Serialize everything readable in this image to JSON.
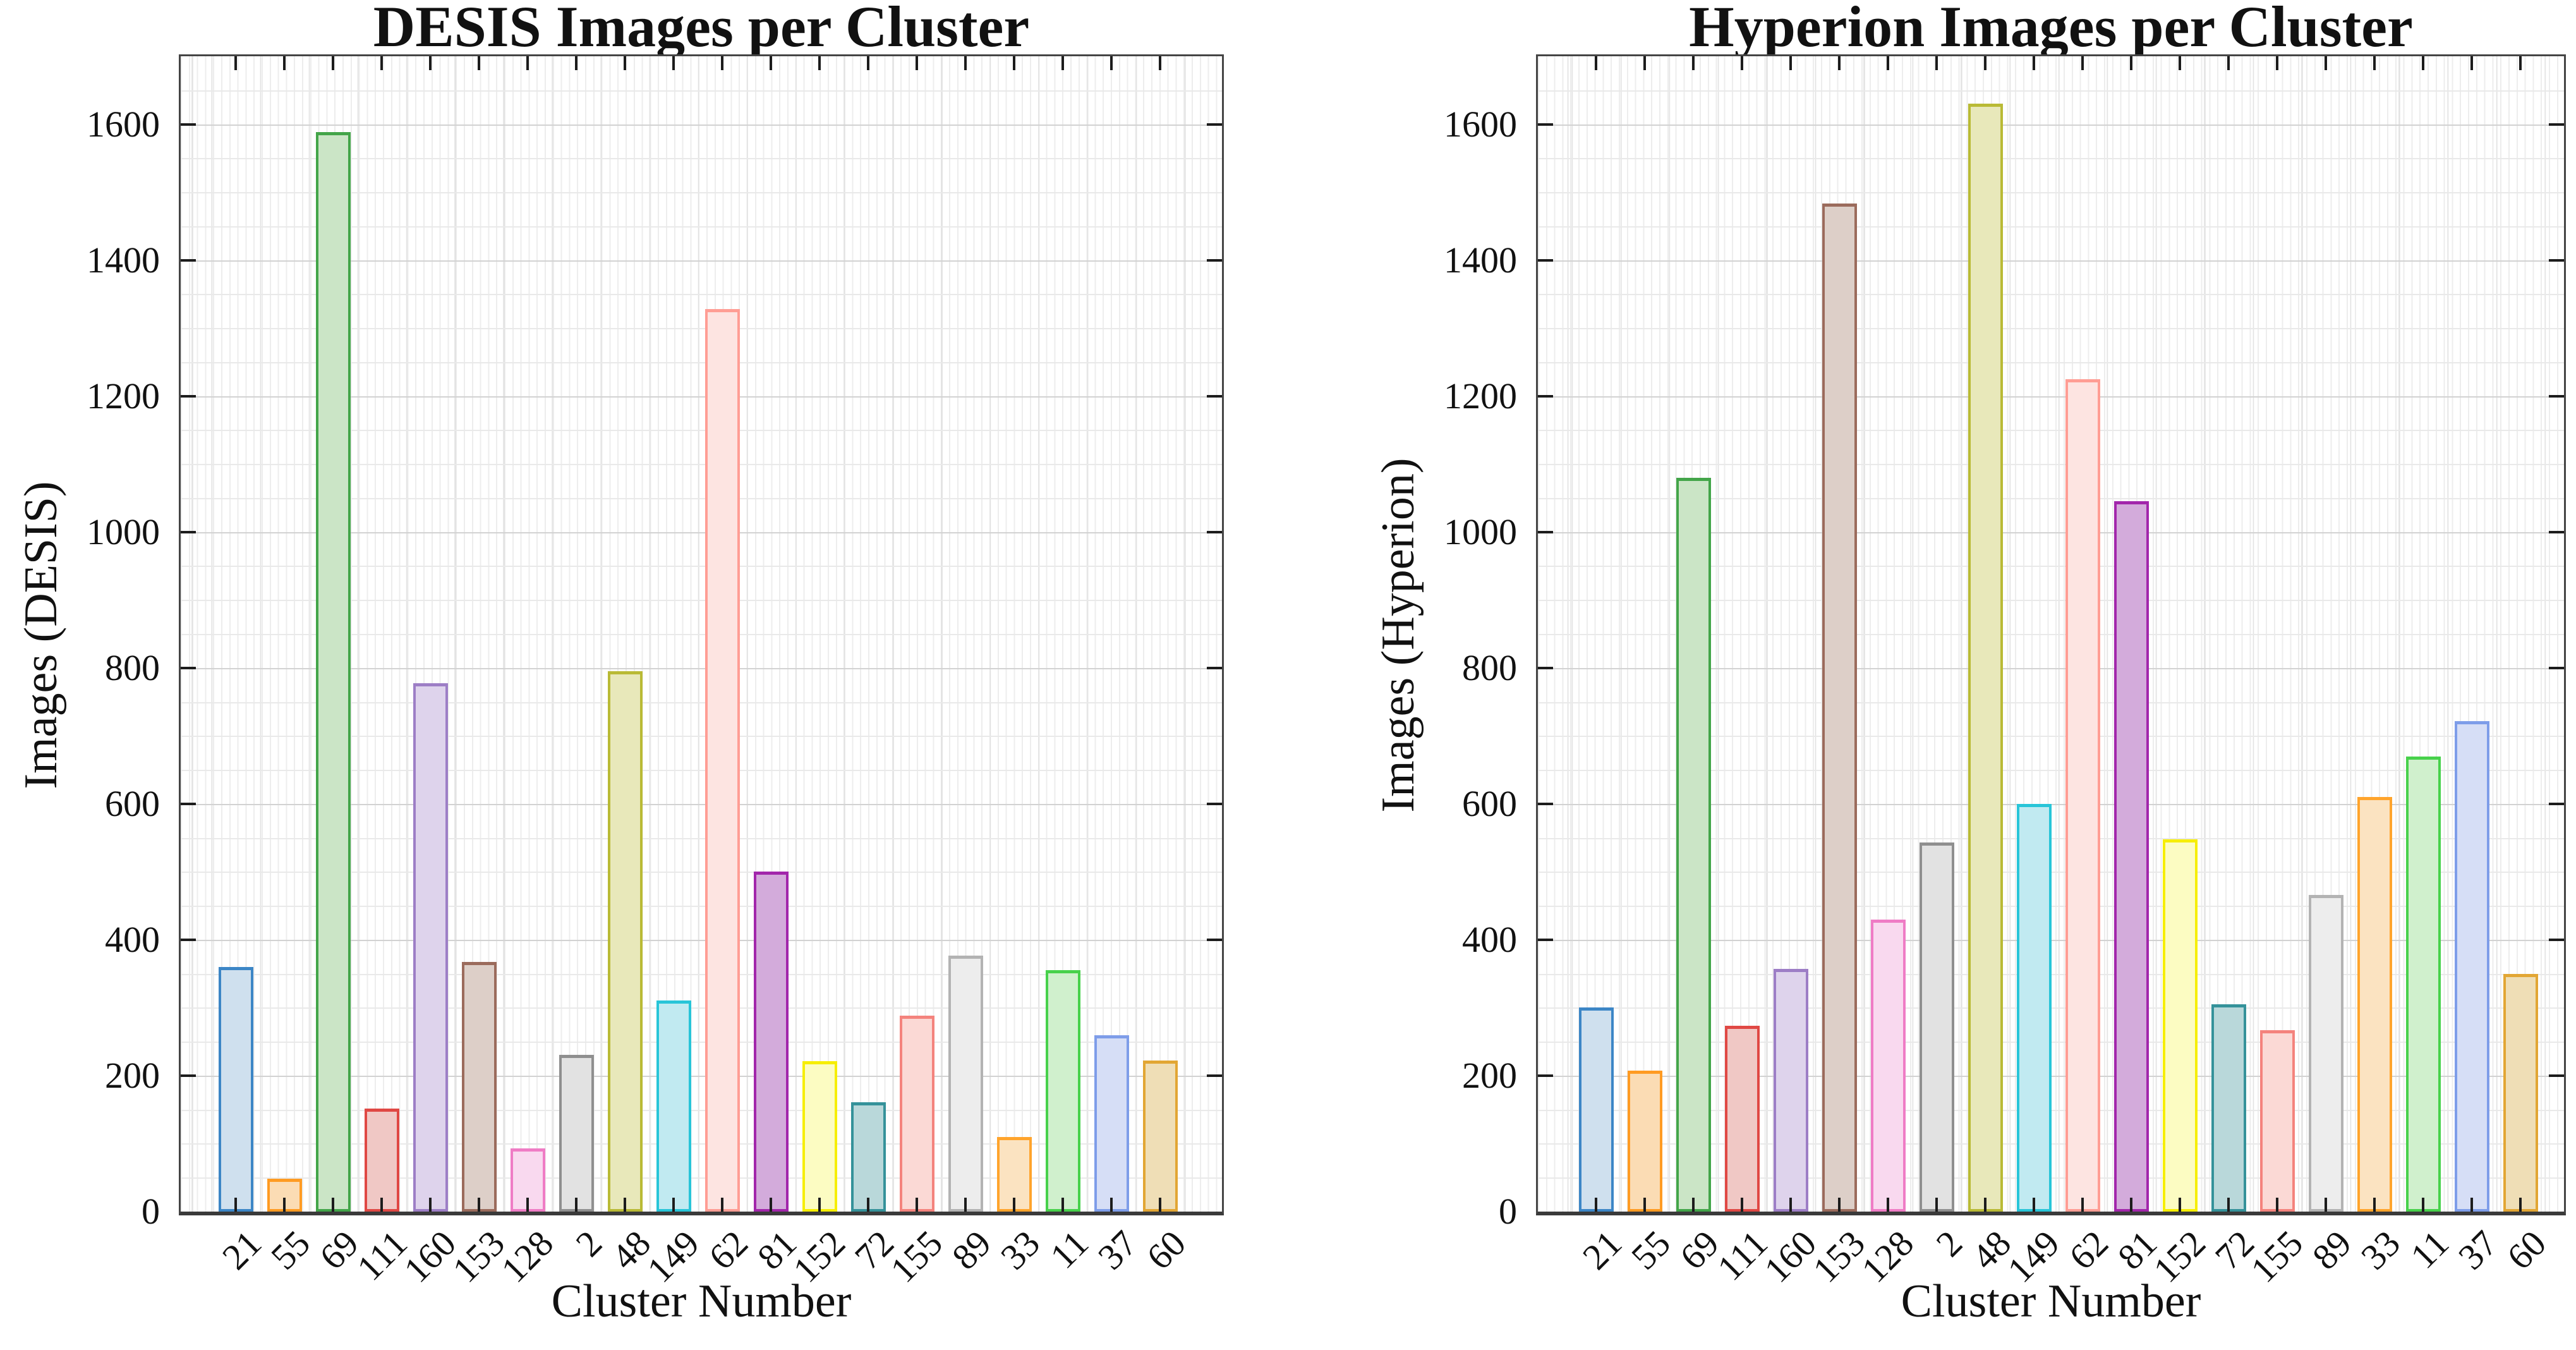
{
  "figure": {
    "background": "#ffffff",
    "style": {
      "spine_color": "#454545",
      "spine_bottom_color": "#3a3a3a",
      "grid_minor_color": "#e9e9e9",
      "grid_major_color": "#d2d2d2",
      "stripe_color": "#ededed",
      "stripe_slot_color": "#e2e2e2",
      "tick_color": "#1c1c1c",
      "text_color": "#111111"
    },
    "palette": {
      "edges": [
        "#3c86c6",
        "#ff9b22",
        "#43a549",
        "#e04844",
        "#9d7ec6",
        "#9b6b5c",
        "#ef7cc5",
        "#8f8f8f",
        "#b9ba35",
        "#28c5d8",
        "#ff9d94",
        "#a226ab",
        "#f6ee05",
        "#35929a",
        "#f4837d",
        "#b3b3b3",
        "#ffa42c",
        "#47d14b",
        "#7e9de9",
        "#e2a634"
      ],
      "fills": [
        "#cfe0ee",
        "#fbdcb4",
        "#cbe5c6",
        "#f0c8c5",
        "#ded3ec",
        "#ddcfc8",
        "#f9d9ef",
        "#e2e2e2",
        "#e8e8ba",
        "#c1eaf1",
        "#fde4e1",
        "#d3abdb",
        "#fcfcc2",
        "#b9d8da",
        "#fbd9d5",
        "#ededed",
        "#fbe3c1",
        "#d0f0cd",
        "#d6def6",
        "#efdeb6"
      ]
    }
  },
  "chart_data": [
    {
      "type": "bar",
      "title": "DESIS Images per Cluster",
      "xlabel": "Cluster Number",
      "ylabel": "Images (DESIS)",
      "categories": [
        "21",
        "55",
        "69",
        "111",
        "160",
        "153",
        "128",
        "2",
        "48",
        "149",
        "62",
        "81",
        "152",
        "72",
        "155",
        "89",
        "33",
        "11",
        "37",
        "60"
      ],
      "values": [
        360,
        48,
        1588,
        152,
        777,
        367,
        93,
        231,
        795,
        311,
        1328,
        500,
        221,
        161,
        288,
        377,
        110,
        355,
        259,
        222
      ],
      "ylim": [
        0,
        1700
      ],
      "yticks": [
        0,
        200,
        400,
        600,
        800,
        1000,
        1200,
        1400,
        1600
      ],
      "grid": "on",
      "legend": "none"
    },
    {
      "type": "bar",
      "title": "Hyperion Images per Cluster",
      "xlabel": "Cluster Number",
      "ylabel": "Images (Hyperion)",
      "categories": [
        "21",
        "55",
        "69",
        "111",
        "160",
        "153",
        "128",
        "2",
        "48",
        "149",
        "62",
        "81",
        "152",
        "72",
        "155",
        "89",
        "33",
        "11",
        "37",
        "60"
      ],
      "values": [
        300,
        207,
        1080,
        273,
        357,
        1483,
        430,
        543,
        1630,
        600,
        1225,
        1045,
        548,
        305,
        267,
        466,
        610,
        670,
        722,
        350
      ],
      "ylim": [
        0,
        1700
      ],
      "yticks": [
        0,
        200,
        400,
        600,
        800,
        1000,
        1200,
        1400,
        1600
      ],
      "grid": "on",
      "legend": "none"
    }
  ]
}
